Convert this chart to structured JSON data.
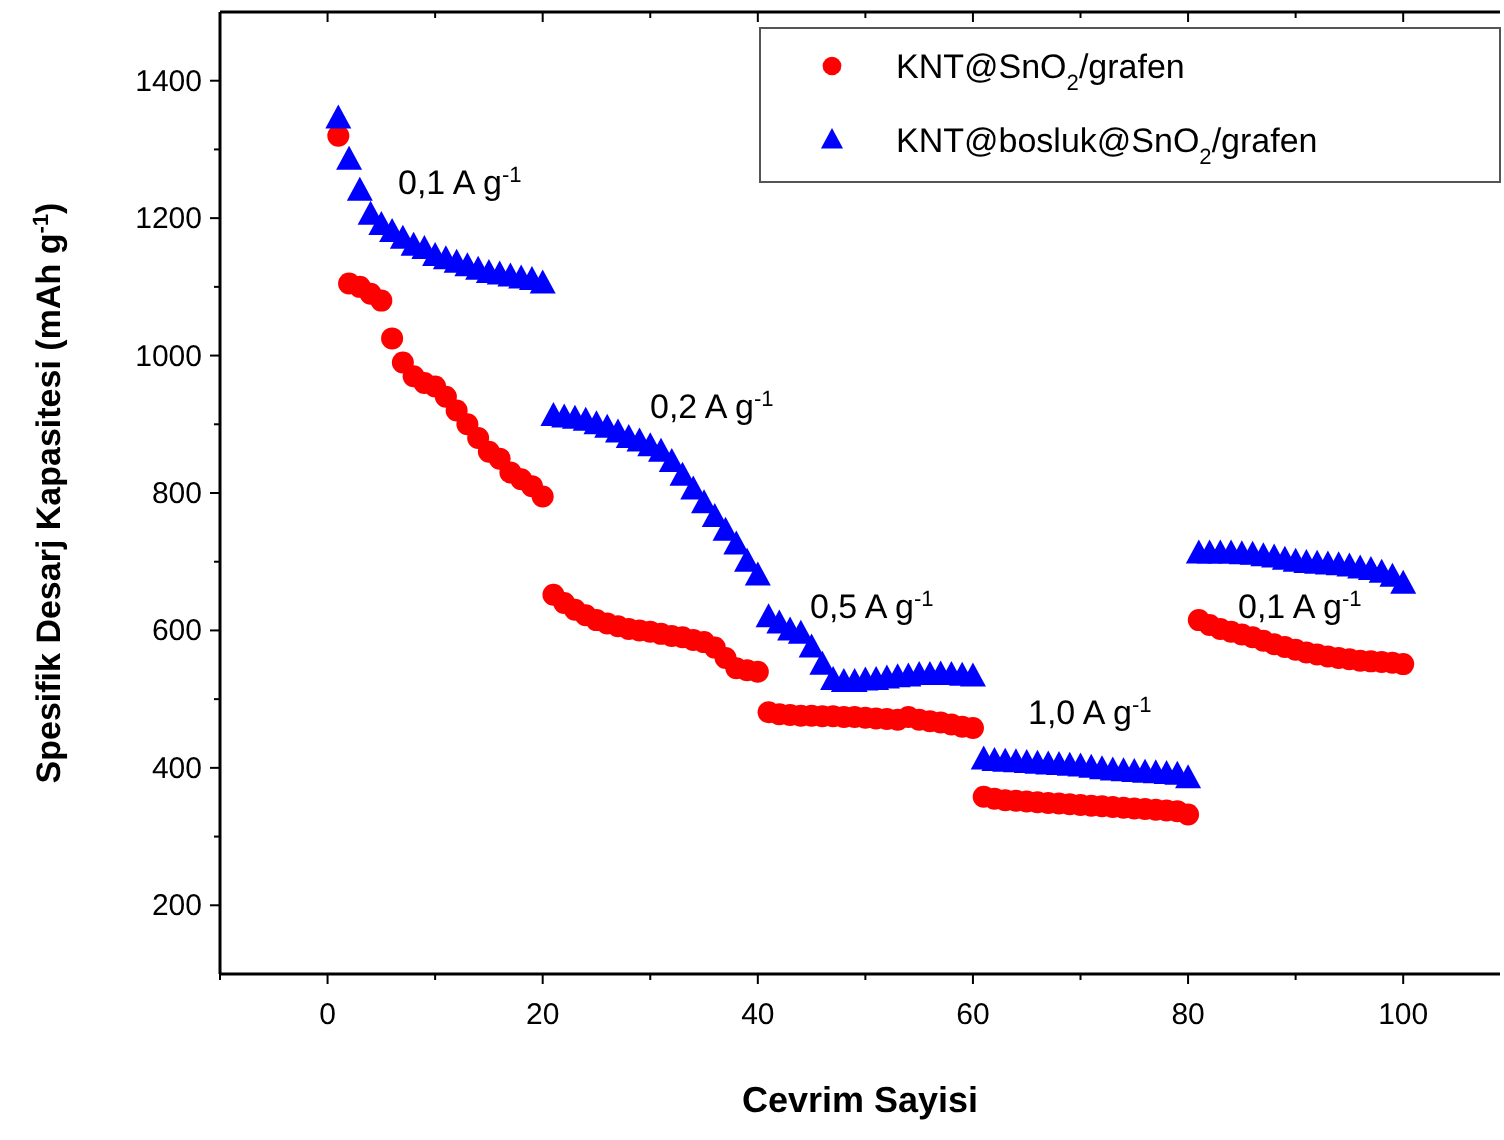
{
  "chart_data": {
    "type": "scatter",
    "xlabel": "Cevrim Sayisi",
    "ylabel": "Spesifik Desarj Kapasitesi (mAh g$^{-1}$)",
    "x": [
      1,
      2,
      3,
      4,
      5,
      6,
      7,
      8,
      9,
      10,
      11,
      12,
      13,
      14,
      15,
      16,
      17,
      18,
      19,
      20,
      21,
      22,
      23,
      24,
      25,
      26,
      27,
      28,
      29,
      30,
      31,
      32,
      33,
      34,
      35,
      36,
      37,
      38,
      39,
      40,
      41,
      42,
      43,
      44,
      45,
      46,
      47,
      48,
      49,
      50,
      51,
      52,
      53,
      54,
      55,
      56,
      57,
      58,
      59,
      60,
      61,
      62,
      63,
      64,
      65,
      66,
      67,
      68,
      69,
      70,
      71,
      72,
      73,
      74,
      75,
      76,
      77,
      78,
      79,
      80,
      81,
      82,
      83,
      84,
      85,
      86,
      87,
      88,
      89,
      90,
      91,
      92,
      93,
      94,
      95,
      96,
      97,
      98,
      99,
      100
    ],
    "series": [
      {
        "name": "KNT@SnO$_{2}$/grafen",
        "color": "#ff0000",
        "marker": "circle",
        "values": [
          1320,
          1105,
          1100,
          1090,
          1080,
          1025,
          990,
          970,
          960,
          955,
          940,
          920,
          900,
          880,
          860,
          850,
          830,
          820,
          810,
          795,
          652,
          640,
          630,
          622,
          615,
          610,
          606,
          602,
          600,
          598,
          595,
          592,
          590,
          586,
          583,
          575,
          560,
          545,
          542,
          540,
          481,
          478,
          477,
          476,
          476,
          475,
          475,
          474,
          474,
          473,
          472,
          471,
          470,
          474,
          470,
          468,
          466,
          463,
          460,
          458,
          358,
          355,
          353,
          352,
          351,
          350,
          349,
          348,
          347,
          346,
          345,
          344,
          343,
          342,
          341,
          340,
          339,
          338,
          337,
          332,
          615,
          608,
          602,
          598,
          594,
          590,
          585,
          580,
          576,
          572,
          568,
          565,
          562,
          560,
          558,
          556,
          555,
          554,
          553,
          551
        ]
      },
      {
        "name": "KNT@bosluk@SnO$_{2}$/grafen",
        "color": "#0000ff",
        "marker": "triangle",
        "values": [
          1345,
          1285,
          1240,
          1205,
          1190,
          1180,
          1170,
          1160,
          1155,
          1145,
          1140,
          1135,
          1130,
          1125,
          1120,
          1118,
          1115,
          1112,
          1110,
          1105,
          912,
          910,
          908,
          905,
          900,
          895,
          888,
          880,
          875,
          868,
          860,
          845,
          825,
          805,
          785,
          765,
          745,
          725,
          700,
          680,
          619,
          610,
          600,
          595,
          575,
          550,
          528,
          525,
          525,
          527,
          528,
          530,
          532,
          533,
          535,
          535,
          536,
          535,
          534,
          533,
          412,
          410,
          409,
          408,
          407,
          406,
          405,
          404,
          403,
          402,
          400,
          398,
          396,
          395,
          394,
          393,
          392,
          391,
          390,
          385,
          712,
          712,
          712,
          712,
          711,
          710,
          708,
          706,
          703,
          700,
          698,
          697,
          696,
          695,
          693,
          690,
          688,
          684,
          678,
          668
        ]
      }
    ],
    "xlim": [
      -10,
      109
    ],
    "xticks": [
      {
        "value": -10,
        "label": null
      },
      0,
      {
        "value": 10,
        "label": null
      },
      20,
      {
        "value": 30,
        "label": null
      },
      40,
      {
        "value": 50,
        "label": null
      },
      60,
      {
        "value": 70,
        "label": null
      },
      80,
      {
        "value": 90,
        "label": null
      },
      100
    ],
    "ylim": [
      100,
      1500
    ],
    "yticks": [
      200,
      {
        "value": 300,
        "label": null
      },
      400,
      {
        "value": 500,
        "label": null
      },
      600,
      {
        "value": 700,
        "label": null
      },
      800,
      {
        "value": 900,
        "label": null
      },
      1000,
      {
        "value": 1100,
        "label": null
      },
      1200,
      {
        "value": 1300,
        "label": null
      },
      1400
    ],
    "legend": "top right",
    "grid": false,
    "annotations": [
      "0,1 A g$^{-1}$",
      "0,2 A g$^{-1}$",
      "0,5 A g$^{-1}$",
      "1,0 A g$^{-1}$",
      "0,1 A g$^{-1}$"
    ]
  }
}
